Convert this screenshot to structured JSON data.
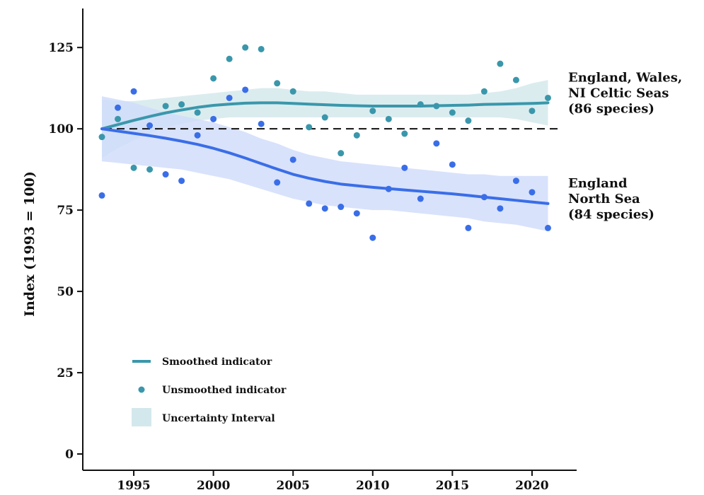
{
  "chart_data": {
    "type": "scatter",
    "title": "",
    "xlabel": "",
    "ylabel": "Index (1993 = 100)",
    "xlim": [
      1991.8,
      2022.8
    ],
    "ylim": [
      -5,
      137
    ],
    "xticks": [
      1995,
      2000,
      2005,
      2010,
      2015,
      2020
    ],
    "yticks": [
      0,
      25,
      50,
      75,
      100,
      125
    ],
    "grid": false,
    "baseline": 100,
    "colors": {
      "celtic": "#3a97ab",
      "celtic_band": "#d3e8ec",
      "north": "#3a6ee8",
      "north_band": "#d0dcfa",
      "baseline": "#111111"
    },
    "series": [
      {
        "name": "England, Wales, NI Celtic Seas (86 species)",
        "label_lines": [
          "England, Wales,",
          "NI Celtic Seas",
          "(86 species)"
        ],
        "color_key": "celtic",
        "points": {
          "x": [
            1993,
            1994,
            1995,
            1996,
            1997,
            1998,
            1999,
            2000,
            2001,
            2002,
            2003,
            2004,
            2005,
            2006,
            2007,
            2008,
            2009,
            2010,
            2011,
            2012,
            2013,
            2014,
            2015,
            2016,
            2017,
            2018,
            2019,
            2020,
            2021
          ],
          "y": [
            97.5,
            103,
            88,
            87.5,
            107,
            107.5,
            105,
            115.5,
            121.5,
            125,
            124.5,
            114,
            111.5,
            100.5,
            103.5,
            92.5,
            98,
            105.5,
            103,
            98.5,
            107.5,
            107,
            105,
            102.5,
            111.5,
            120,
            115,
            105.5,
            109.5
          ]
        },
        "smooth": {
          "x": [
            1993,
            1994,
            1995,
            1996,
            1997,
            1998,
            1999,
            2000,
            2001,
            2002,
            2003,
            2004,
            2005,
            2006,
            2007,
            2008,
            2009,
            2010,
            2011,
            2012,
            2013,
            2014,
            2015,
            2016,
            2017,
            2018,
            2019,
            2020,
            2021
          ],
          "y": [
            100,
            101.3,
            102.6,
            103.8,
            104.9,
            105.8,
            106.6,
            107.2,
            107.6,
            107.9,
            108,
            108,
            107.8,
            107.6,
            107.4,
            107.2,
            107.1,
            107,
            107,
            107,
            107,
            107.1,
            107.2,
            107.3,
            107.5,
            107.6,
            107.7,
            107.8,
            108
          ]
        },
        "band": {
          "lower": [
            91,
            94,
            96.5,
            98.5,
            100.5,
            101.5,
            102.5,
            103,
            103.5,
            103.5,
            103.5,
            103.5,
            103.5,
            103.5,
            103.5,
            103.5,
            103.5,
            103.5,
            103.5,
            103.5,
            103.5,
            103.5,
            103.5,
            103.5,
            103.5,
            103.5,
            103,
            102,
            101
          ],
          "upper": [
            109,
            108.5,
            108.5,
            109,
            109.5,
            110,
            110.5,
            111,
            111.5,
            112,
            112.5,
            112.5,
            112,
            111.5,
            111.5,
            111,
            110.5,
            110.5,
            110.5,
            110.5,
            110.5,
            110.5,
            110.5,
            110.5,
            111,
            111.5,
            112.5,
            114,
            115
          ]
        }
      },
      {
        "name": "England North Sea (84 species)",
        "label_lines": [
          "England",
          "North Sea",
          "(84 species)"
        ],
        "color_key": "north",
        "points": {
          "x": [
            1993,
            1994,
            1995,
            1996,
            1997,
            1998,
            1999,
            2000,
            2001,
            2002,
            2003,
            2004,
            2005,
            2006,
            2007,
            2008,
            2009,
            2010,
            2011,
            2012,
            2013,
            2014,
            2015,
            2016,
            2017,
            2018,
            2019,
            2020,
            2021
          ],
          "y": [
            79.5,
            106.5,
            111.5,
            101,
            86,
            84,
            98,
            103,
            109.5,
            112,
            101.5,
            83.5,
            90.5,
            77,
            75.5,
            76,
            74,
            66.5,
            81.5,
            88,
            78.5,
            95.5,
            89,
            69.5,
            79,
            75.5,
            84,
            80.5,
            69.5
          ]
        },
        "smooth": {
          "x": [
            1993,
            1994,
            1995,
            1996,
            1997,
            1998,
            1999,
            2000,
            2001,
            2002,
            2003,
            2004,
            2005,
            2006,
            2007,
            2008,
            2009,
            2010,
            2011,
            2012,
            2013,
            2014,
            2015,
            2016,
            2017,
            2018,
            2019,
            2020,
            2021
          ],
          "y": [
            100,
            99.3,
            98.6,
            97.9,
            97.1,
            96.2,
            95.2,
            94,
            92.6,
            91,
            89.3,
            87.6,
            86,
            84.8,
            83.8,
            83,
            82.5,
            82,
            81.6,
            81.2,
            80.8,
            80.4,
            80,
            79.5,
            79,
            78.5,
            78,
            77.5,
            77
          ]
        },
        "band": {
          "lower": [
            90,
            89.5,
            89,
            88.5,
            88,
            87.5,
            86.5,
            85.5,
            84.5,
            83,
            81.5,
            80,
            78.5,
            77.5,
            76.5,
            76,
            75.5,
            75,
            75,
            74.5,
            74,
            73.5,
            73,
            72.5,
            71.5,
            71,
            70.5,
            69.5,
            68.5
          ],
          "upper": [
            110,
            109,
            108,
            106.5,
            105,
            104,
            103,
            102,
            100.5,
            99,
            97,
            95.5,
            93.5,
            92,
            91,
            90,
            89.5,
            89,
            88.5,
            88,
            87.5,
            87,
            86.5,
            86,
            86,
            85.5,
            85.5,
            85.5,
            85.5
          ]
        }
      }
    ],
    "legend": {
      "placement": "bottom-left",
      "items": [
        {
          "kind": "line",
          "label": "Smoothed indicator"
        },
        {
          "kind": "dot",
          "label": "Unsmoothed indicator"
        },
        {
          "kind": "band",
          "label": "Uncertainty Interval"
        }
      ]
    }
  }
}
